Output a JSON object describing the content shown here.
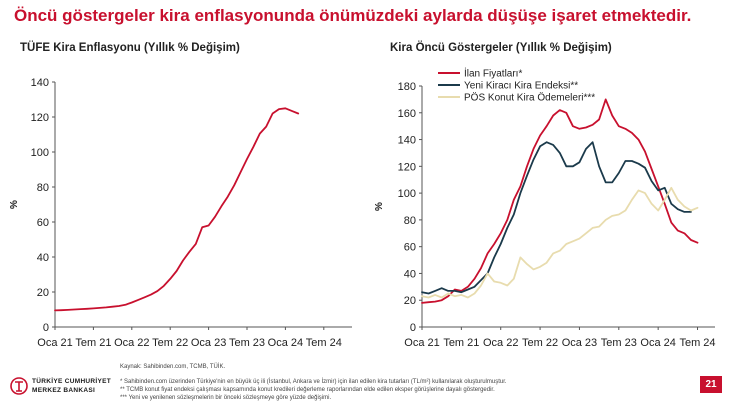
{
  "title": "Öncü göstergeler kira enflasyonunda önümüzdeki aylarda düşüşe işaret etmektedir.",
  "chart_data": [
    {
      "type": "line",
      "title": "TÜFE Kira Enflasyonu (Yıllık % Değişim)",
      "ylabel": "%",
      "ylim": [
        0,
        140
      ],
      "yticks": [
        0,
        20,
        40,
        60,
        80,
        100,
        120,
        140
      ],
      "xticks": [
        "Oca 21",
        "Tem 21",
        "Oca 22",
        "Tem 22",
        "Oca 23",
        "Tem 23",
        "Oca 24",
        "Tem 24"
      ],
      "x_start": "Oca 21",
      "grid": false,
      "series": [
        {
          "color": "#c8102e",
          "values": [
            9.5,
            9.6,
            9.8,
            10.0,
            10.2,
            10.4,
            10.6,
            10.9,
            11.2,
            11.6,
            12.0,
            12.7,
            14.0,
            15.5,
            17.0,
            18.5,
            20.5,
            23.5,
            27.5,
            32.0,
            38.0,
            43.0,
            47.5,
            57.0,
            58.0,
            63.0,
            69.0,
            74.5,
            81.0,
            88.5,
            96.0,
            103.0,
            110.5,
            114.5,
            122.0,
            124.5,
            125.0,
            123.5,
            122.0
          ]
        }
      ]
    },
    {
      "type": "line",
      "title": "Kira Öncü Göstergeler (Yıllık % Değişim)",
      "ylabel": "%",
      "ylim": [
        0,
        180
      ],
      "yticks": [
        0,
        20,
        40,
        60,
        80,
        100,
        120,
        140,
        160,
        180
      ],
      "xticks": [
        "Oca 21",
        "Tem 21",
        "Oca 22",
        "Tem 22",
        "Oca 23",
        "Tem 23",
        "Oca 24",
        "Tem 24"
      ],
      "x_start": "Oca 21",
      "legend": "top-left",
      "grid": false,
      "series": [
        {
          "name": "İlan Fiyatları*",
          "color": "#c8102e",
          "values": [
            18,
            18.5,
            19,
            20,
            23,
            28,
            27,
            30,
            36,
            44,
            55,
            62,
            70,
            80,
            95,
            105,
            120,
            133,
            143,
            150,
            158,
            162,
            160,
            150,
            148,
            149,
            151,
            155,
            170,
            158,
            150,
            148,
            145,
            140,
            131,
            118,
            105,
            92,
            78,
            72,
            70,
            65,
            63
          ]
        },
        {
          "name": "Yeni Kiracı Kira Endeksi**",
          "color": "#1b3a4b",
          "values": [
            26,
            25,
            27,
            29,
            27,
            27,
            26,
            28,
            30,
            35,
            40,
            52,
            62,
            74,
            84,
            100,
            113,
            125,
            135,
            138,
            136,
            130,
            120,
            120,
            123,
            133,
            138,
            120,
            108,
            108,
            115,
            124,
            124,
            122,
            119,
            109,
            102,
            104,
            92,
            88,
            86,
            86
          ]
        },
        {
          "name": "PÖS Konut Kira Ödemeleri***",
          "color": "#e8dcae",
          "values": [
            23,
            22,
            24,
            22,
            25,
            23,
            24,
            22,
            25,
            31,
            40,
            34,
            33,
            31,
            36,
            52,
            47,
            43,
            45,
            48,
            55,
            57,
            62,
            64,
            66,
            70,
            74,
            75,
            80,
            83,
            84,
            87,
            95,
            102,
            100,
            92,
            87,
            95,
            104,
            95,
            90,
            87,
            89
          ]
        }
      ]
    }
  ],
  "footer": {
    "source": "Kaynak: Sahibinden.com, TCMB, TÜİK.",
    "note1": "* Sahibinden.com üzerinden Türkiye'nin en büyük üç ili (İstanbul, Ankara ve İzmir) için ilan edilen kira tutarları (TL/m²) kullanılarak oluşturulmuştur.",
    "note2": "** TCMB konut fiyat endeksi çalışması kapsamında konut kredileri değerleme raporlarından elde edilen eksper görüşlerine dayalı göstergedir.",
    "note3": "*** Yeni ve yenilenen sözleşmelerin bir önceki sözleşmeye göre yüzde değişimi.",
    "bank_line1": "TÜRKİYE CUMHURİYET",
    "bank_line2": "MERKEZ BANKASI",
    "page_number": "21"
  },
  "colors": {
    "accent": "#c8102e"
  }
}
